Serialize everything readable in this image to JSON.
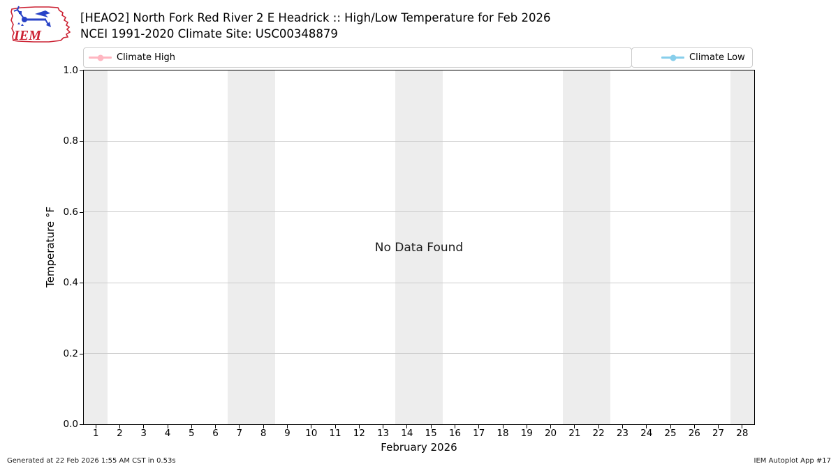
{
  "header": {
    "title_line1": "[HEAO2] North Fork Red River 2 E Headrick :: High/Low Temperature for Feb 2026",
    "title_line2": "NCEI 1991-2020 Climate Site: USC00348879",
    "logo_text": "IEM"
  },
  "legend": {
    "items": [
      {
        "label": "Climate High",
        "color": "#ffb6c1"
      },
      {
        "label": "Climate Low",
        "color": "#87ceeb"
      }
    ]
  },
  "chart_data": {
    "type": "line",
    "title": "[HEAO2] North Fork Red River 2 E Headrick :: High/Low Temperature for Feb 2026",
    "subtitle": "NCEI 1991-2020 Climate Site: USC00348879",
    "xlabel": "February 2026",
    "ylabel": "Temperature °F",
    "xlim": [
      0.5,
      28.5
    ],
    "ylim": [
      0.0,
      1.0
    ],
    "x_ticks": [
      1,
      2,
      3,
      4,
      5,
      6,
      7,
      8,
      9,
      10,
      11,
      12,
      13,
      14,
      15,
      16,
      17,
      18,
      19,
      20,
      21,
      22,
      23,
      24,
      25,
      26,
      27,
      28
    ],
    "y_ticks": [
      0.0,
      0.2,
      0.4,
      0.6,
      0.8,
      1.0
    ],
    "y_grid": [
      0.2,
      0.4,
      0.6,
      0.8
    ],
    "grid": "horizontal",
    "legend_position": "top",
    "weekend_bands": [
      [
        0.5,
        1.5
      ],
      [
        6.5,
        8.5
      ],
      [
        13.5,
        15.5
      ],
      [
        20.5,
        22.5
      ],
      [
        27.5,
        28.5
      ]
    ],
    "series": [
      {
        "name": "Climate High",
        "color": "#ffb6c1",
        "x": [],
        "values": []
      },
      {
        "name": "Climate Low",
        "color": "#87ceeb",
        "x": [],
        "values": []
      }
    ],
    "no_data_text": "No Data Found",
    "colors": {
      "weekend_band": "#ededed",
      "gridline": "#cccccc",
      "frame": "#000000",
      "background": "#ffffff"
    }
  },
  "footer": {
    "generated": "Generated at 22 Feb 2026 1:55 AM CST in 0.53s",
    "app": "IEM Autoplot App #17"
  }
}
